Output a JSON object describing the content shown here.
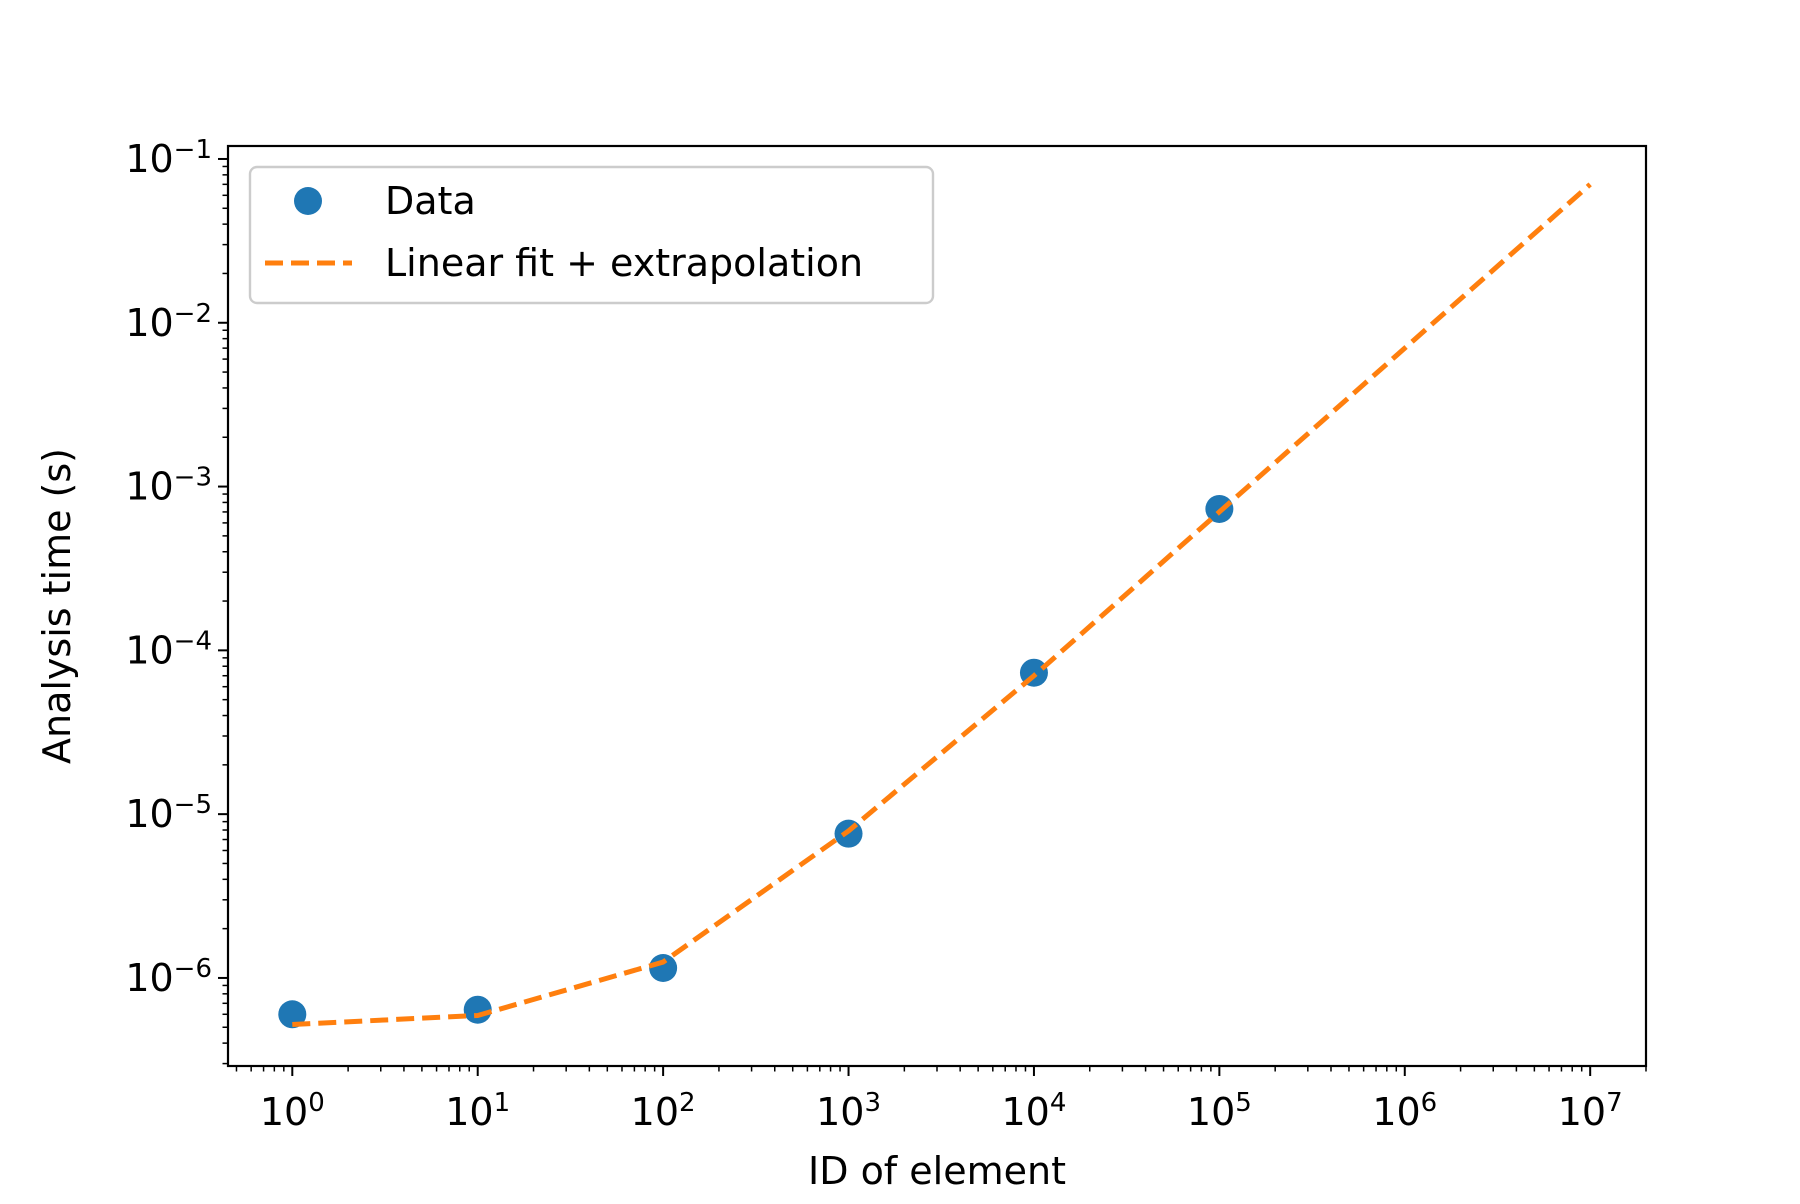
{
  "chart_data": {
    "type": "scatter",
    "xlabel": "ID of element",
    "ylabel": "Analysis time (s)",
    "xscale": "log",
    "yscale": "log",
    "xlim": [
      0.45,
      20000000
    ],
    "ylim": [
      2.9e-07,
      0.12
    ],
    "legend_position": "top-left",
    "grid": false,
    "x_ticks": [
      {
        "base": "10",
        "exp": "0",
        "value": 1
      },
      {
        "base": "10",
        "exp": "1",
        "value": 10
      },
      {
        "base": "10",
        "exp": "2",
        "value": 100
      },
      {
        "base": "10",
        "exp": "3",
        "value": 1000
      },
      {
        "base": "10",
        "exp": "4",
        "value": 10000
      },
      {
        "base": "10",
        "exp": "5",
        "value": 100000
      },
      {
        "base": "10",
        "exp": "6",
        "value": 1000000
      },
      {
        "base": "10",
        "exp": "7",
        "value": 10000000
      }
    ],
    "y_ticks": [
      {
        "base": "10",
        "exp": "−6",
        "value": 1e-06
      },
      {
        "base": "10",
        "exp": "−5",
        "value": 1e-05
      },
      {
        "base": "10",
        "exp": "−4",
        "value": 0.0001
      },
      {
        "base": "10",
        "exp": "−3",
        "value": 0.001
      },
      {
        "base": "10",
        "exp": "−2",
        "value": 0.01
      },
      {
        "base": "10",
        "exp": "−1",
        "value": 0.1
      }
    ],
    "series": [
      {
        "name": "Data",
        "kind": "scatter",
        "color": "#1f77b4",
        "x": [
          1,
          10,
          100,
          1000,
          10000,
          100000
        ],
        "y": [
          6e-07,
          6.4e-07,
          1.15e-06,
          7.6e-06,
          7.3e-05,
          0.00073
        ]
      },
      {
        "name": "Linear fit + extrapolation",
        "kind": "line",
        "style": "dashed",
        "color": "#ff7f0e",
        "x": [
          1,
          10,
          100,
          1000,
          10000,
          100000,
          1000000,
          10000000
        ],
        "y": [
          5.2e-07,
          5.9e-07,
          1.25e-06,
          7.9e-06,
          7e-05,
          0.0007,
          0.007,
          0.07
        ]
      }
    ]
  }
}
